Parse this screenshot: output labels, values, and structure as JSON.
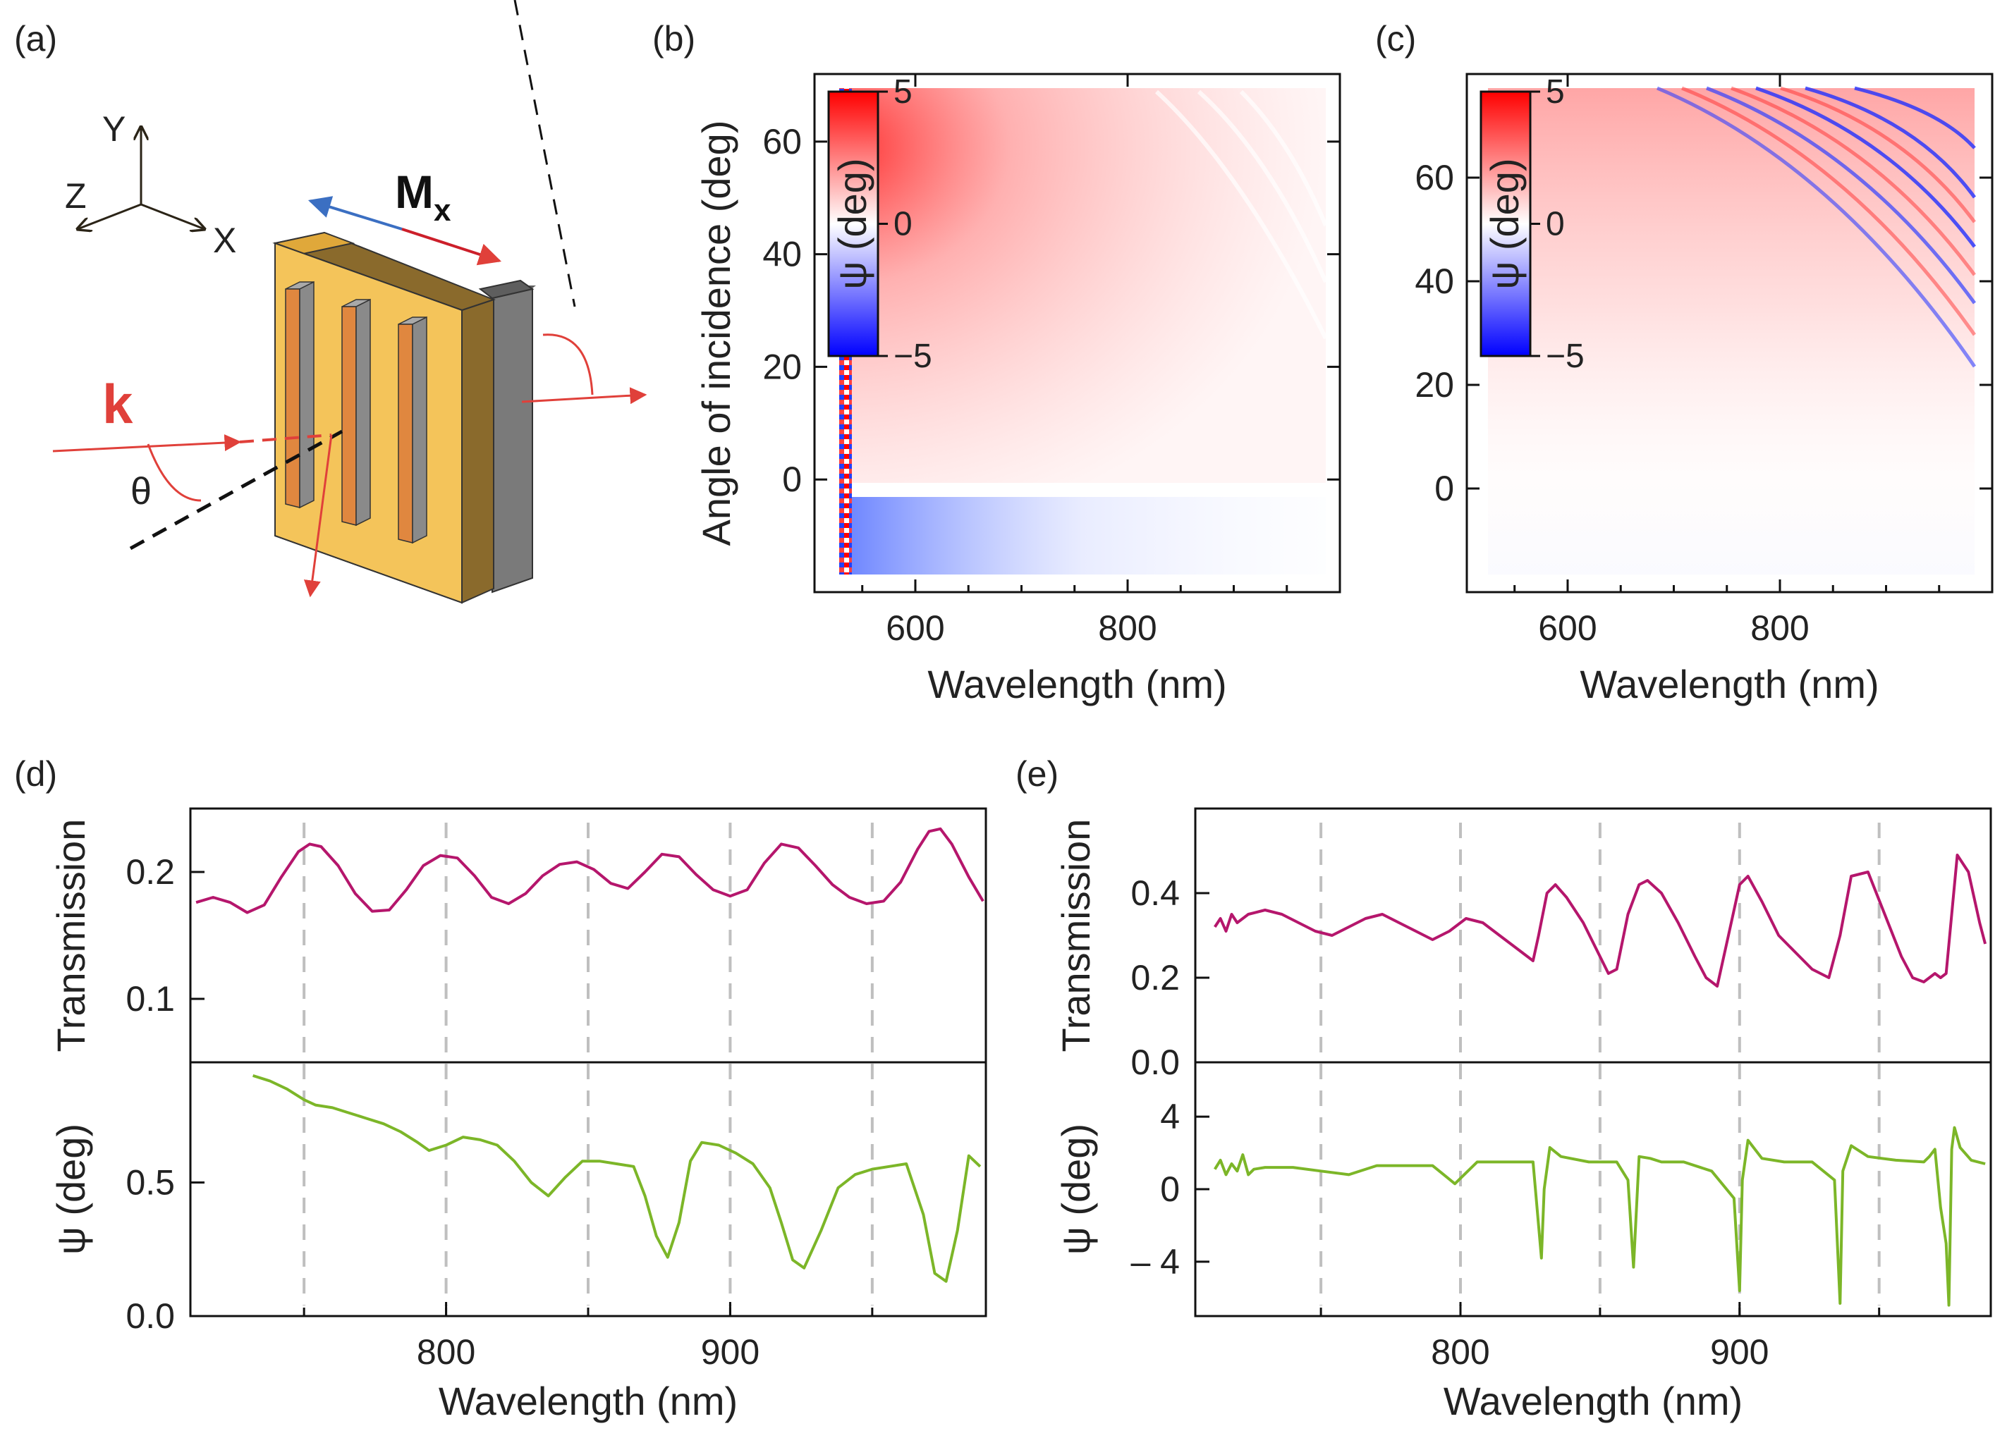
{
  "figure": {
    "panel_labels": [
      "(a)",
      "(b)",
      "(c)",
      "(d)",
      "(e)"
    ]
  },
  "schematic": {
    "axis_labels": [
      "Y",
      "Z",
      "X"
    ],
    "magnetization_label": "M",
    "magnetization_subscript": "x",
    "wavevector_label": "k",
    "angle_label": "θ",
    "colors": {
      "gold": "#f4c45a",
      "gold_dark": "#e0a83a",
      "bronze": "#b08a3e",
      "bronze_top": "#8a6a2c",
      "gray": "#7a7a7a",
      "gray_top": "#5e5e5e",
      "bar_front": "#e0873f",
      "bar_side": "#8a8a8a",
      "bar_top": "#a9a9a9",
      "red": "#e0403a",
      "blue": "#3b6fc2"
    }
  },
  "chart_data": [
    {
      "id": "b",
      "type": "heatmap",
      "xlabel": "Wavelength (nm)",
      "ylabel": "Angle of incidence (deg)",
      "xlim": [
        505,
        1000
      ],
      "ylim": [
        -20,
        72
      ],
      "xticks": [
        600,
        800
      ],
      "yticks": [
        0,
        20,
        40,
        60
      ],
      "data_x_range": [
        520,
        980
      ],
      "data_y_range": [
        -17,
        70
      ],
      "colorbar": {
        "label": "ψ (deg)",
        "range": [
          -5,
          5
        ],
        "ticks": [
          "5",
          "0",
          "−5"
        ],
        "colors": [
          "#ff0000",
          "#ffffff",
          "#0000ff"
        ]
      },
      "description_values": {
        "psi_max_deg": 5,
        "psi_min_deg": -5
      }
    },
    {
      "id": "c",
      "type": "heatmap",
      "xlabel": "Wavelength (nm)",
      "ylabel": "",
      "xlim": [
        505,
        1000
      ],
      "ylim": [
        -20,
        80
      ],
      "xticks": [
        600,
        800
      ],
      "yticks": [
        0,
        20,
        40,
        60
      ],
      "data_x_range": [
        520,
        980
      ],
      "data_y_range": [
        -16,
        77
      ],
      "colorbar": {
        "label": "ψ (deg)",
        "range": [
          -5,
          5
        ],
        "ticks": [
          "5",
          "0",
          "−5"
        ],
        "colors": [
          "#ff0000",
          "#ffffff",
          "#0000ff"
        ]
      }
    },
    {
      "id": "d",
      "type": "line",
      "xlabel": "Wavelength (nm)",
      "xlim": [
        710,
        990
      ],
      "xticks": [
        800,
        900
      ],
      "vlines": [
        750,
        800,
        850,
        900,
        950
      ],
      "top": {
        "ylabel": "Transmission",
        "ylim": [
          0.05,
          0.25
        ],
        "yticks": [
          0.1,
          0.2
        ],
        "ytick_labels": [
          "0.1",
          "0.2"
        ],
        "color": "#b5166c",
        "x": [
          712,
          718,
          724,
          730,
          736,
          742,
          748,
          752,
          756,
          762,
          768,
          774,
          780,
          786,
          792,
          798,
          804,
          810,
          816,
          822,
          828,
          834,
          840,
          846,
          852,
          858,
          864,
          870,
          876,
          882,
          888,
          894,
          900,
          906,
          912,
          918,
          924,
          930,
          936,
          942,
          948,
          954,
          960,
          966,
          970,
          974,
          978,
          984,
          989
        ],
        "y": [
          0.176,
          0.18,
          0.176,
          0.168,
          0.174,
          0.196,
          0.216,
          0.222,
          0.22,
          0.205,
          0.183,
          0.169,
          0.17,
          0.186,
          0.205,
          0.213,
          0.211,
          0.197,
          0.18,
          0.175,
          0.183,
          0.197,
          0.206,
          0.208,
          0.202,
          0.191,
          0.187,
          0.2,
          0.214,
          0.212,
          0.198,
          0.186,
          0.181,
          0.186,
          0.207,
          0.222,
          0.219,
          0.205,
          0.19,
          0.18,
          0.175,
          0.177,
          0.192,
          0.218,
          0.232,
          0.234,
          0.222,
          0.196,
          0.177
        ]
      },
      "bottom": {
        "ylabel": "ψ (deg)",
        "ylim": [
          0,
          0.95
        ],
        "yticks": [
          0,
          0.5
        ],
        "ytick_labels": [
          "0.0",
          "0.5"
        ],
        "color": "#7cb628",
        "x": [
          732,
          738,
          744,
          750,
          754,
          760,
          766,
          772,
          778,
          784,
          790,
          794,
          800,
          806,
          812,
          818,
          824,
          830,
          836,
          842,
          848,
          854,
          860,
          866,
          870,
          874,
          878,
          882,
          886,
          890,
          896,
          902,
          908,
          914,
          918,
          922,
          926,
          932,
          938,
          944,
          950,
          956,
          962,
          968,
          972,
          976,
          980,
          984,
          988
        ],
        "y": [
          0.9,
          0.88,
          0.85,
          0.81,
          0.79,
          0.78,
          0.76,
          0.74,
          0.72,
          0.69,
          0.65,
          0.62,
          0.64,
          0.67,
          0.66,
          0.64,
          0.58,
          0.5,
          0.45,
          0.52,
          0.58,
          0.58,
          0.57,
          0.56,
          0.45,
          0.3,
          0.22,
          0.35,
          0.58,
          0.65,
          0.64,
          0.61,
          0.57,
          0.48,
          0.35,
          0.21,
          0.18,
          0.32,
          0.48,
          0.53,
          0.55,
          0.56,
          0.57,
          0.38,
          0.16,
          0.13,
          0.32,
          0.6,
          0.56
        ]
      }
    },
    {
      "id": "e",
      "type": "line",
      "xlabel": "Wavelength (nm)",
      "xlim": [
        705,
        990
      ],
      "xticks": [
        800,
        900
      ],
      "vlines": [
        750,
        800,
        850,
        900,
        950
      ],
      "top": {
        "ylabel": "Transmission",
        "ylim": [
          0,
          0.6
        ],
        "yticks": [
          0,
          0.2,
          0.4
        ],
        "ytick_labels": [
          "0.0",
          "0.2",
          "0.4"
        ],
        "color": "#b5166c",
        "x": [
          712,
          714,
          716,
          718,
          720,
          724,
          730,
          736,
          742,
          748,
          754,
          760,
          766,
          772,
          778,
          784,
          790,
          796,
          802,
          808,
          814,
          820,
          824,
          826,
          828,
          831,
          834,
          838,
          844,
          850,
          853,
          856,
          860,
          864,
          867,
          872,
          878,
          884,
          888,
          892,
          896,
          900,
          903,
          908,
          914,
          920,
          926,
          932,
          936,
          940,
          946,
          952,
          958,
          962,
          966,
          970,
          972,
          974,
          978,
          982,
          986,
          988
        ],
        "y": [
          0.32,
          0.34,
          0.31,
          0.35,
          0.33,
          0.35,
          0.36,
          0.35,
          0.33,
          0.31,
          0.3,
          0.32,
          0.34,
          0.35,
          0.33,
          0.31,
          0.29,
          0.31,
          0.34,
          0.33,
          0.3,
          0.27,
          0.25,
          0.24,
          0.3,
          0.4,
          0.42,
          0.39,
          0.33,
          0.25,
          0.21,
          0.22,
          0.35,
          0.42,
          0.43,
          0.4,
          0.33,
          0.25,
          0.2,
          0.18,
          0.3,
          0.42,
          0.44,
          0.38,
          0.3,
          0.26,
          0.22,
          0.2,
          0.3,
          0.44,
          0.45,
          0.35,
          0.25,
          0.2,
          0.19,
          0.21,
          0.2,
          0.21,
          0.49,
          0.45,
          0.33,
          0.28
        ]
      },
      "bottom": {
        "ylabel": "ψ (deg)",
        "ylim": [
          -7,
          7
        ],
        "yticks": [
          4,
          0,
          -4
        ],
        "ytick_labels": [
          "4",
          "0",
          "– 4"
        ],
        "color": "#7cb628",
        "x": [
          712,
          714,
          716,
          718,
          720,
          722,
          724,
          726,
          730,
          740,
          750,
          760,
          770,
          780,
          790,
          794,
          798,
          806,
          816,
          826,
          829,
          830,
          832,
          836,
          846,
          856,
          860,
          862,
          864,
          868,
          872,
          880,
          890,
          898,
          900,
          901,
          903,
          908,
          916,
          926,
          934,
          936,
          937,
          940,
          946,
          956,
          966,
          968,
          970,
          972,
          974,
          975,
          976,
          977,
          979,
          983,
          988
        ],
        "y": [
          1.1,
          1.6,
          0.8,
          1.4,
          1.0,
          1.9,
          0.8,
          1.1,
          1.2,
          1.2,
          1.0,
          0.8,
          1.3,
          1.3,
          1.3,
          0.8,
          0.3,
          1.5,
          1.5,
          1.5,
          -3.8,
          0.0,
          2.3,
          1.8,
          1.5,
          1.5,
          0.5,
          -4.3,
          1.8,
          1.7,
          1.5,
          1.5,
          1.0,
          -0.5,
          -5.6,
          0.5,
          2.7,
          1.7,
          1.5,
          1.5,
          0.5,
          -6.3,
          1.0,
          2.4,
          1.8,
          1.6,
          1.5,
          1.8,
          2.2,
          -1.0,
          -3.0,
          -6.4,
          2.2,
          3.4,
          2.3,
          1.6,
          1.4
        ]
      }
    }
  ]
}
